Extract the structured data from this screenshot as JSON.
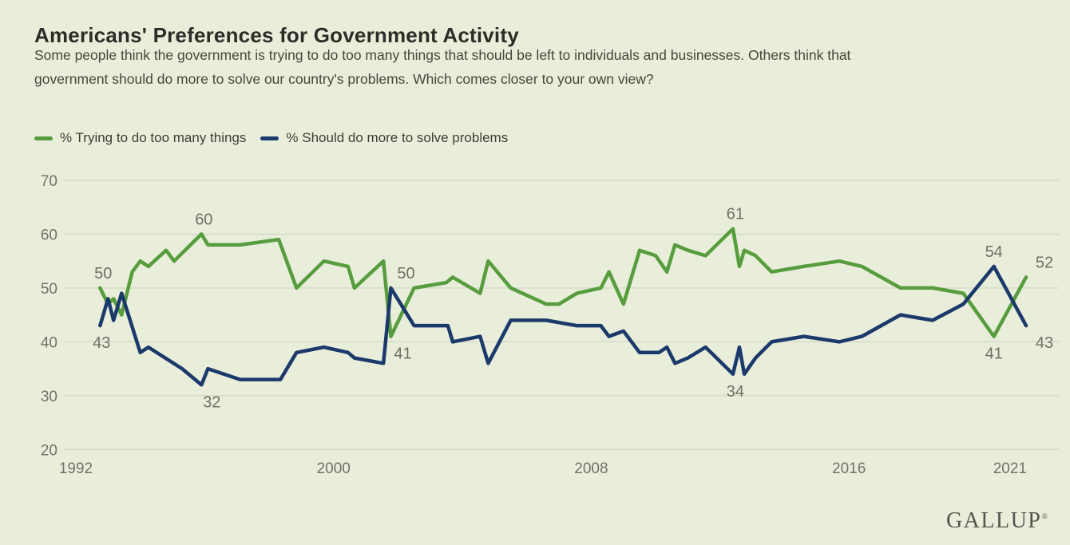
{
  "header": {
    "title": "Americans' Preferences for Government Activity",
    "subtitle_line1": "Some people think the government is trying to do too many things that should be left to individuals and businesses. Others think that",
    "subtitle_line2": "government should do more to solve our country's problems. Which comes closer to your own view?"
  },
  "legend": {
    "items": [
      {
        "label": "% Trying to do too many things",
        "color": "#579d3e"
      },
      {
        "label": "% Should do more to solve problems",
        "color": "#1b3a6b"
      }
    ]
  },
  "footer": {
    "logo_text": "GALLUP",
    "trademark": "®"
  },
  "chart_data": {
    "type": "line",
    "title": "Americans' Preferences for Government Activity",
    "xlabel": "",
    "ylabel": "%",
    "grid": "horizontal",
    "legend_position": "top-left",
    "colors": {
      "background": "#e9eedb",
      "grid": "#d5d9c7",
      "axis_text": "#70726a",
      "annotation_text": "#6e7066"
    },
    "x_axis": {
      "ticks": [
        1992,
        2000,
        2008,
        2016,
        2021
      ],
      "range": [
        1991.5,
        2022.5
      ]
    },
    "y_axis": {
      "ticks": [
        70,
        60,
        50,
        40,
        30,
        20
      ],
      "range": [
        20,
        70
      ]
    },
    "points_format": "[year, percent]",
    "series": [
      {
        "id": "trend-too-many-things",
        "name": "% Trying to do too many things",
        "color": "#579d3e",
        "points": [
          [
            1992.75,
            50
          ],
          [
            1993.0,
            47
          ],
          [
            1993.17,
            48
          ],
          [
            1993.42,
            45
          ],
          [
            1993.75,
            53
          ],
          [
            1994.0,
            55
          ],
          [
            1994.25,
            54
          ],
          [
            1994.8,
            57
          ],
          [
            1995.05,
            55
          ],
          [
            1995.9,
            60
          ],
          [
            1996.1,
            58
          ],
          [
            1997.1,
            58
          ],
          [
            1998.3,
            59
          ],
          [
            1998.85,
            50
          ],
          [
            1999.7,
            55
          ],
          [
            2000.45,
            54
          ],
          [
            2000.65,
            50
          ],
          [
            2001.55,
            55
          ],
          [
            2001.78,
            41
          ],
          [
            2002.5,
            50
          ],
          [
            2003.5,
            51
          ],
          [
            2003.7,
            52
          ],
          [
            2004.55,
            49
          ],
          [
            2004.8,
            55
          ],
          [
            2005.5,
            50
          ],
          [
            2006.6,
            47
          ],
          [
            2007.0,
            47
          ],
          [
            2007.55,
            49
          ],
          [
            2008.3,
            50
          ],
          [
            2008.55,
            53
          ],
          [
            2009.0,
            47
          ],
          [
            2009.5,
            57
          ],
          [
            2010.0,
            56
          ],
          [
            2010.35,
            53
          ],
          [
            2010.6,
            58
          ],
          [
            2011.0,
            57
          ],
          [
            2011.55,
            56
          ],
          [
            2012.4,
            61
          ],
          [
            2012.6,
            54
          ],
          [
            2012.75,
            57
          ],
          [
            2013.1,
            56
          ],
          [
            2013.6,
            53
          ],
          [
            2014.6,
            54
          ],
          [
            2015.7,
            55
          ],
          [
            2016.4,
            54
          ],
          [
            2017.6,
            50
          ],
          [
            2018.6,
            50
          ],
          [
            2019.55,
            49
          ],
          [
            2020.5,
            41
          ],
          [
            2021.5,
            52
          ]
        ]
      },
      {
        "id": "trend-should-do-more",
        "name": "% Should do more to solve problems",
        "color": "#1b3a6b",
        "points": [
          [
            1992.75,
            43
          ],
          [
            1993.0,
            48
          ],
          [
            1993.17,
            44
          ],
          [
            1993.42,
            49
          ],
          [
            1994.0,
            38
          ],
          [
            1994.25,
            39
          ],
          [
            1995.3,
            35
          ],
          [
            1995.9,
            32
          ],
          [
            1996.1,
            35
          ],
          [
            1997.1,
            33
          ],
          [
            1998.35,
            33
          ],
          [
            1998.85,
            38
          ],
          [
            1999.7,
            39
          ],
          [
            2000.45,
            38
          ],
          [
            2000.65,
            37
          ],
          [
            2001.55,
            36
          ],
          [
            2001.78,
            50
          ],
          [
            2002.5,
            43
          ],
          [
            2003.55,
            43
          ],
          [
            2003.7,
            40
          ],
          [
            2004.55,
            41
          ],
          [
            2004.8,
            36
          ],
          [
            2005.5,
            44
          ],
          [
            2006.6,
            44
          ],
          [
            2007.55,
            43
          ],
          [
            2008.3,
            43
          ],
          [
            2008.55,
            41
          ],
          [
            2009.0,
            42
          ],
          [
            2009.5,
            38
          ],
          [
            2010.1,
            38
          ],
          [
            2010.35,
            39
          ],
          [
            2010.6,
            36
          ],
          [
            2011.0,
            37
          ],
          [
            2011.55,
            39
          ],
          [
            2012.4,
            34
          ],
          [
            2012.6,
            39
          ],
          [
            2012.75,
            34
          ],
          [
            2013.1,
            37
          ],
          [
            2013.6,
            40
          ],
          [
            2014.6,
            41
          ],
          [
            2015.7,
            40
          ],
          [
            2016.4,
            41
          ],
          [
            2017.6,
            45
          ],
          [
            2018.6,
            44
          ],
          [
            2019.55,
            47
          ],
          [
            2020.5,
            54
          ],
          [
            2021.5,
            43
          ]
        ]
      }
    ],
    "annotations": [
      {
        "label": "50",
        "series": "trend-too-many-things",
        "year": 1992.75,
        "value": 50,
        "placement": "above",
        "dx": 4
      },
      {
        "label": "43",
        "series": "trend-should-do-more",
        "year": 1992.75,
        "value": 43,
        "placement": "below",
        "dx": 2
      },
      {
        "label": "60",
        "series": "trend-too-many-things",
        "year": 1995.9,
        "value": 60,
        "placement": "above",
        "dx": 3
      },
      {
        "label": "32",
        "series": "trend-should-do-more",
        "year": 1995.9,
        "value": 32,
        "placement": "below",
        "dx": 13
      },
      {
        "label": "50",
        "series": "trend-should-do-more",
        "year": 2001.78,
        "value": 50,
        "placement": "above",
        "dx": 19
      },
      {
        "label": "41",
        "series": "trend-too-many-things",
        "year": 2001.78,
        "value": 41,
        "placement": "below",
        "dx": 15
      },
      {
        "label": "61",
        "series": "trend-too-many-things",
        "year": 2012.4,
        "value": 61,
        "placement": "above",
        "dx": 3
      },
      {
        "label": "34",
        "series": "trend-should-do-more",
        "year": 2012.4,
        "value": 34,
        "placement": "below",
        "dx": 3
      },
      {
        "label": "54",
        "series": "trend-should-do-more",
        "year": 2020.5,
        "value": 54,
        "placement": "above",
        "dx": 0
      },
      {
        "label": "41",
        "series": "trend-too-many-things",
        "year": 2020.5,
        "value": 41,
        "placement": "below",
        "dx": 0
      },
      {
        "label": "52",
        "series": "trend-too-many-things",
        "year": 2021.5,
        "value": 52,
        "placement": "above",
        "dx": 23
      },
      {
        "label": "43",
        "series": "trend-should-do-more",
        "year": 2021.5,
        "value": 43,
        "placement": "below",
        "dx": 23
      }
    ]
  }
}
